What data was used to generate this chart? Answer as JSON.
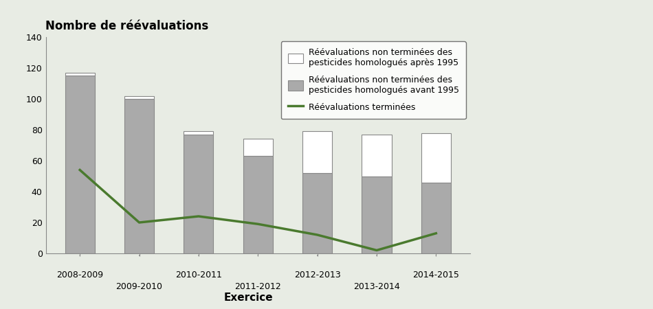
{
  "years": [
    "2008-2009",
    "2009-2010",
    "2010-2011",
    "2011-2012",
    "2012-2013",
    "2013-2014",
    "2014-2015"
  ],
  "bar_before_1995": [
    115,
    100,
    77,
    63,
    52,
    50,
    46
  ],
  "bar_after_1995": [
    2,
    2,
    2,
    11,
    27,
    27,
    32
  ],
  "line_values": [
    54,
    20,
    24,
    19,
    12,
    2,
    13
  ],
  "bar_color_before": "#aaaaaa",
  "bar_color_after": "#ffffff",
  "bar_edge_color": "#888888",
  "line_color": "#4a7a2e",
  "background_color": "#e8ece4",
  "title": "Nombre de réévaluations",
  "xlabel": "Exercice",
  "ylim": [
    0,
    140
  ],
  "yticks": [
    0,
    20,
    40,
    60,
    80,
    100,
    120,
    140
  ],
  "legend_label_after": "Réévaluations non terminées des\npesticides homologués après 1995",
  "legend_label_before": "Réévaluations non terminées des\npesticides homologués avant 1995",
  "legend_label_line": "Réévaluations terminées",
  "bar_width": 0.5
}
